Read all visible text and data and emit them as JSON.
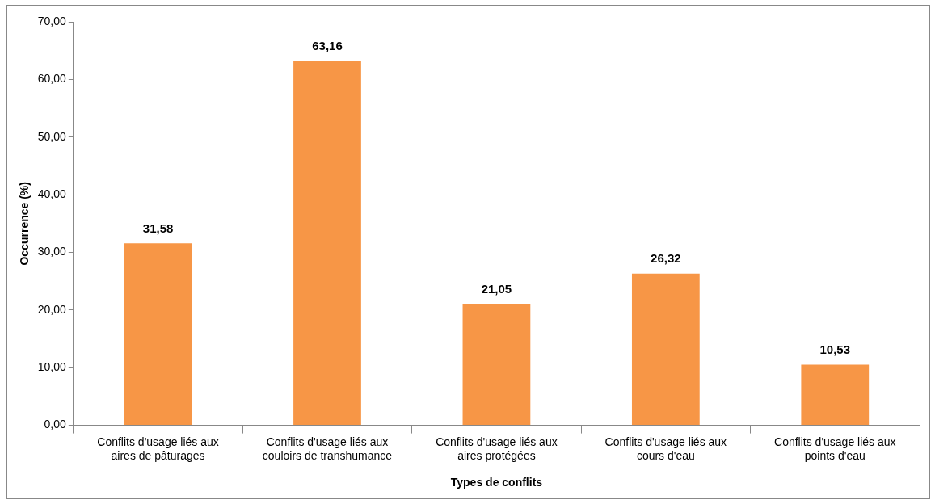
{
  "chart_data": {
    "type": "bar",
    "xlabel": "Types de conflits",
    "ylabel": "Occurrence (%)",
    "categories": [
      "Conflits d'usage liés aux aires de pâturages",
      "Conflits d'usage liés aux couloirs de transhumance",
      "Conflits d'usage liés aux aires protégées",
      "Conflits d'usage liés aux cours d'eau",
      "Conflits d'usage liés aux points d'eau"
    ],
    "values": [
      31.58,
      63.16,
      21.05,
      26.32,
      10.53
    ],
    "value_labels": [
      "31,58",
      "63,16",
      "21,05",
      "26,32",
      "10,53"
    ],
    "color": "#f79646",
    "ylim": [
      0,
      70
    ],
    "yticks": [
      {
        "value": 0,
        "label": "0,00"
      },
      {
        "value": 10,
        "label": "10,00"
      },
      {
        "value": 20,
        "label": "20,00"
      },
      {
        "value": 30,
        "label": "30,00"
      },
      {
        "value": 40,
        "label": "40,00"
      },
      {
        "value": 50,
        "label": "50,00"
      },
      {
        "value": 60,
        "label": "60,00"
      },
      {
        "value": 70,
        "label": "70,00"
      }
    ],
    "grid": false,
    "legend": false
  }
}
